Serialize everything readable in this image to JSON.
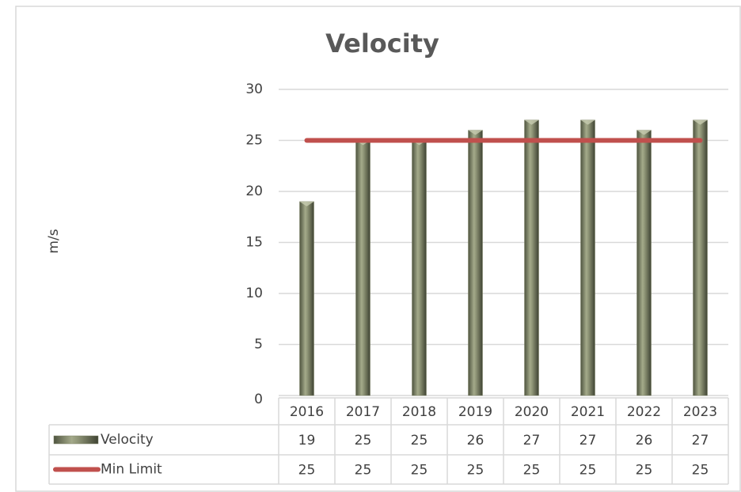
{
  "chart_data": {
    "type": "bar",
    "title": "Velocity",
    "y_label": "m/s",
    "categories": [
      "2016",
      "2017",
      "2018",
      "2019",
      "2020",
      "2021",
      "2022",
      "2023"
    ],
    "series": [
      {
        "name": "Velocity",
        "type": "bar",
        "color": "#7a8062",
        "values": [
          19,
          25,
          25,
          26,
          27,
          27,
          26,
          27
        ]
      },
      {
        "name": "Min Limit",
        "type": "line",
        "color": "#c0504d",
        "values": [
          25,
          25,
          25,
          25,
          25,
          25,
          25,
          25
        ]
      }
    ],
    "ylim": [
      0,
      30
    ],
    "yticks": [
      0,
      5,
      10,
      15,
      20,
      25,
      30
    ],
    "grid": true,
    "data_table": true
  }
}
